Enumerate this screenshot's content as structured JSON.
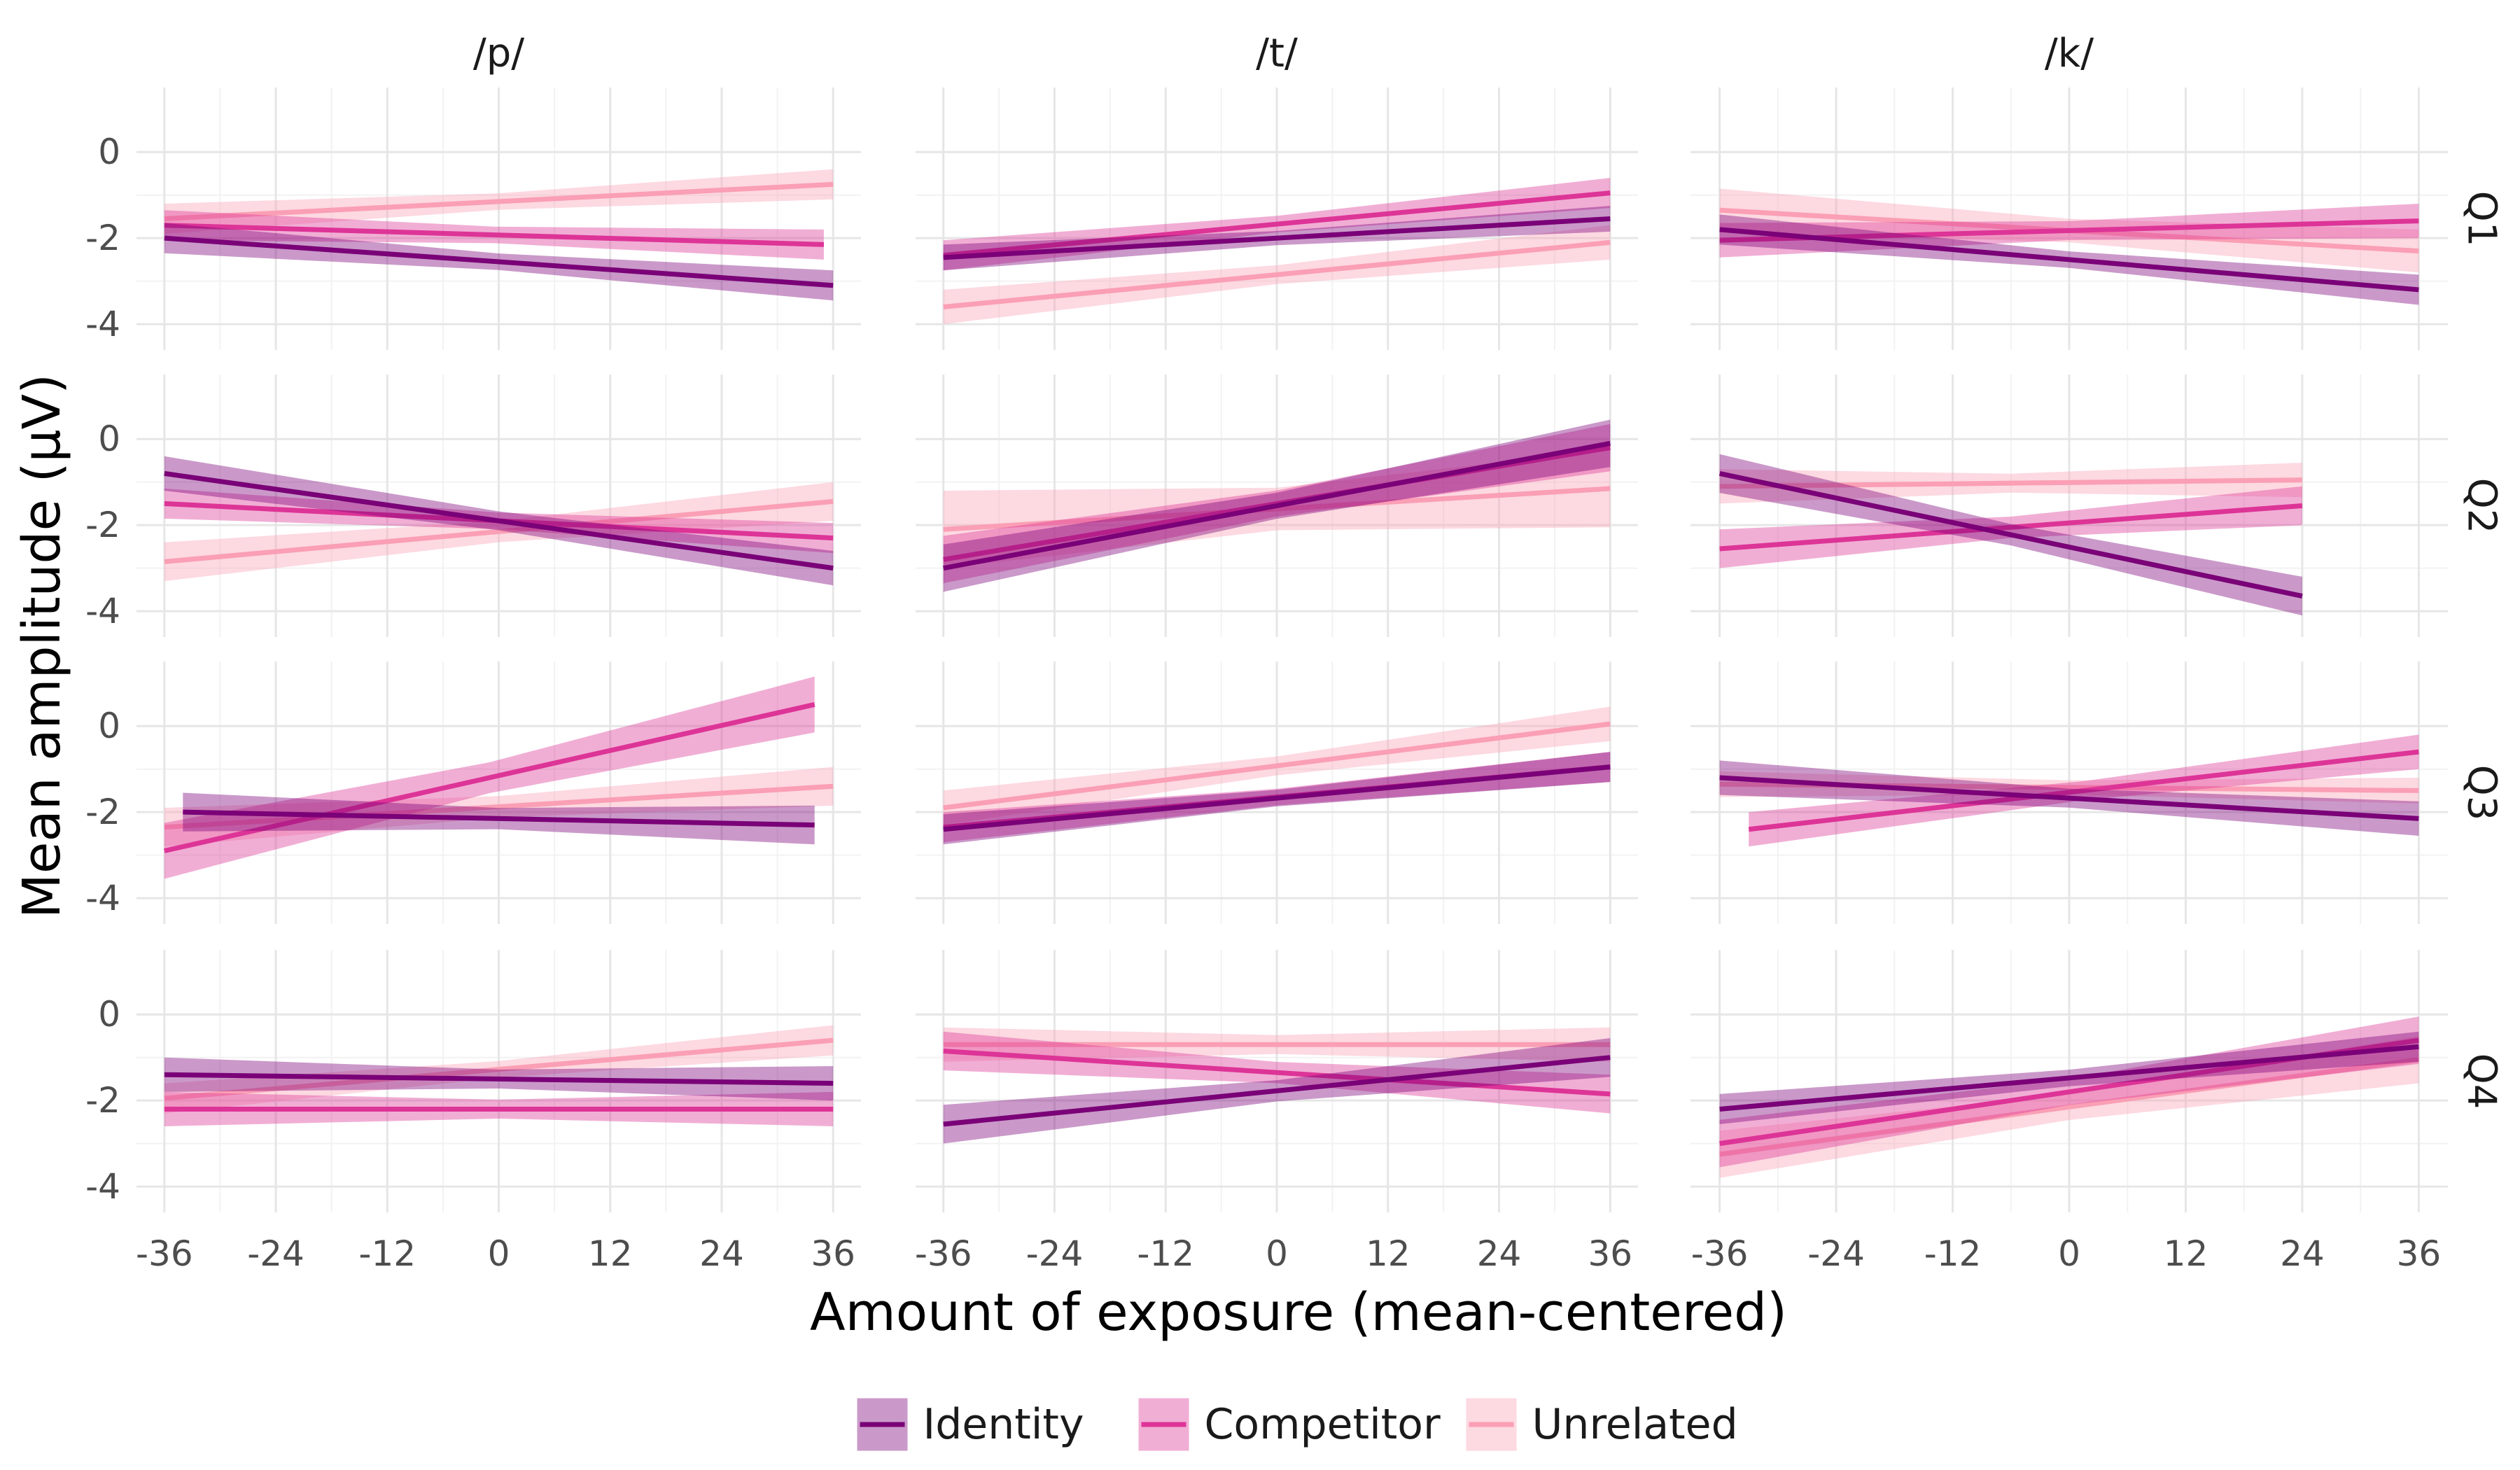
{
  "chart_data": {
    "type": "line",
    "facet_columns": [
      "/p/",
      "/t/",
      "/k/"
    ],
    "facet_rows": [
      "Q1",
      "Q2",
      "Q3",
      "Q4"
    ],
    "xlabel": "Amount of exposure (mean-centered)",
    "ylabel": "Mean amplitude (µV)",
    "xlim": [
      -39,
      39
    ],
    "ylim": [
      -4.6,
      1.5
    ],
    "x_ticks": [
      -36,
      -24,
      -12,
      0,
      12,
      24,
      36
    ],
    "y_ticks": [
      0,
      -2,
      -4
    ],
    "grid": true,
    "legend_position": "bottom",
    "legend": [
      {
        "name": "Identity",
        "color": "#7a0177"
      },
      {
        "name": "Competitor",
        "color": "#dd3497"
      },
      {
        "name": "Unrelated",
        "color": "#fa9fb5"
      }
    ],
    "panels": [
      {
        "col": "/p/",
        "row": "Q1",
        "series": [
          {
            "name": "Identity",
            "x": [
              -36,
              36
            ],
            "y": [
              -2.0,
              -3.1
            ],
            "ci": 0.35
          },
          {
            "name": "Competitor",
            "x": [
              -36,
              35
            ],
            "y": [
              -1.7,
              -2.15
            ],
            "ci": 0.35
          },
          {
            "name": "Unrelated",
            "x": [
              -36,
              36
            ],
            "y": [
              -1.55,
              -0.75
            ],
            "ci": 0.35
          }
        ]
      },
      {
        "col": "/t/",
        "row": "Q1",
        "series": [
          {
            "name": "Identity",
            "x": [
              -36,
              36
            ],
            "y": [
              -2.45,
              -1.55
            ],
            "ci": 0.3
          },
          {
            "name": "Competitor",
            "x": [
              -36,
              36
            ],
            "y": [
              -2.4,
              -0.95
            ],
            "ci": 0.35
          },
          {
            "name": "Unrelated",
            "x": [
              -36,
              36
            ],
            "y": [
              -3.6,
              -2.1
            ],
            "ci": 0.4
          }
        ]
      },
      {
        "col": "/k/",
        "row": "Q1",
        "series": [
          {
            "name": "Identity",
            "x": [
              -36,
              36
            ],
            "y": [
              -1.8,
              -3.2
            ],
            "ci": 0.35
          },
          {
            "name": "Competitor",
            "x": [
              -36,
              36
            ],
            "y": [
              -2.05,
              -1.6
            ],
            "ci": 0.4
          },
          {
            "name": "Unrelated",
            "x": [
              -36,
              36
            ],
            "y": [
              -1.35,
              -2.3
            ],
            "ci": 0.5
          }
        ]
      },
      {
        "col": "/p/",
        "row": "Q2",
        "series": [
          {
            "name": "Identity",
            "x": [
              -36,
              36
            ],
            "y": [
              -0.8,
              -3.0
            ],
            "ci": 0.4
          },
          {
            "name": "Competitor",
            "x": [
              -36,
              36
            ],
            "y": [
              -1.5,
              -2.3
            ],
            "ci": 0.35
          },
          {
            "name": "Unrelated",
            "x": [
              -36,
              36
            ],
            "y": [
              -2.85,
              -1.45
            ],
            "ci": 0.45
          }
        ]
      },
      {
        "col": "/t/",
        "row": "Q2",
        "series": [
          {
            "name": "Identity",
            "x": [
              -36,
              36
            ],
            "y": [
              -3.0,
              -0.1
            ],
            "ci": 0.55
          },
          {
            "name": "Competitor",
            "x": [
              -36,
              36
            ],
            "y": [
              -2.8,
              -0.2
            ],
            "ci": 0.55
          },
          {
            "name": "Unrelated",
            "x": [
              -36,
              36
            ],
            "y": [
              -2.1,
              -1.15
            ],
            "ci": 0.9
          }
        ]
      },
      {
        "col": "/k/",
        "row": "Q2",
        "series": [
          {
            "name": "Identity",
            "x": [
              -36,
              24
            ],
            "y": [
              -0.8,
              -3.65
            ],
            "ci": 0.45
          },
          {
            "name": "Competitor",
            "x": [
              -36,
              24
            ],
            "y": [
              -2.55,
              -1.55
            ],
            "ci": 0.45
          },
          {
            "name": "Unrelated",
            "x": [
              -36,
              24
            ],
            "y": [
              -1.1,
              -0.95
            ],
            "ci": 0.4
          }
        ]
      },
      {
        "col": "/p/",
        "row": "Q3",
        "series": [
          {
            "name": "Identity",
            "x": [
              -34,
              34
            ],
            "y": [
              -2.0,
              -2.3
            ],
            "ci": 0.45
          },
          {
            "name": "Competitor",
            "x": [
              -36,
              34
            ],
            "y": [
              -2.9,
              0.5
            ],
            "ci": 0.65
          },
          {
            "name": "Unrelated",
            "x": [
              -36,
              36
            ],
            "y": [
              -2.35,
              -1.4
            ],
            "ci": 0.45
          }
        ]
      },
      {
        "col": "/t/",
        "row": "Q3",
        "series": [
          {
            "name": "Identity",
            "x": [
              -36,
              36
            ],
            "y": [
              -2.4,
              -0.95
            ],
            "ci": 0.35
          },
          {
            "name": "Competitor",
            "x": [
              -36,
              36
            ],
            "y": [
              -2.35,
              -0.95
            ],
            "ci": 0.35
          },
          {
            "name": "Unrelated",
            "x": [
              -36,
              36
            ],
            "y": [
              -1.9,
              0.05
            ],
            "ci": 0.4
          }
        ]
      },
      {
        "col": "/k/",
        "row": "Q3",
        "series": [
          {
            "name": "Identity",
            "x": [
              -36,
              36
            ],
            "y": [
              -1.2,
              -2.15
            ],
            "ci": 0.4
          },
          {
            "name": "Competitor",
            "x": [
              -33,
              36
            ],
            "y": [
              -2.4,
              -0.6
            ],
            "ci": 0.4
          },
          {
            "name": "Unrelated",
            "x": [
              -36,
              36
            ],
            "y": [
              -1.35,
              -1.5
            ],
            "ci": 0.3
          }
        ]
      },
      {
        "col": "/p/",
        "row": "Q4",
        "series": [
          {
            "name": "Identity",
            "x": [
              -36,
              36
            ],
            "y": [
              -1.4,
              -1.6
            ],
            "ci": 0.4
          },
          {
            "name": "Competitor",
            "x": [
              -36,
              36
            ],
            "y": [
              -2.2,
              -2.2
            ],
            "ci": 0.4
          },
          {
            "name": "Unrelated",
            "x": [
              -36,
              36
            ],
            "y": [
              -1.95,
              -0.6
            ],
            "ci": 0.35
          }
        ]
      },
      {
        "col": "/t/",
        "row": "Q4",
        "series": [
          {
            "name": "Identity",
            "x": [
              -36,
              36
            ],
            "y": [
              -2.55,
              -1.0
            ],
            "ci": 0.45
          },
          {
            "name": "Competitor",
            "x": [
              -36,
              36
            ],
            "y": [
              -0.85,
              -1.85
            ],
            "ci": 0.45
          },
          {
            "name": "Unrelated",
            "x": [
              -36,
              36
            ],
            "y": [
              -0.7,
              -0.7
            ],
            "ci": 0.4
          }
        ]
      },
      {
        "col": "/k/",
        "row": "Q4",
        "series": [
          {
            "name": "Identity",
            "x": [
              -36,
              36
            ],
            "y": [
              -2.2,
              -0.75
            ],
            "ci": 0.35
          },
          {
            "name": "Competitor",
            "x": [
              -36,
              36
            ],
            "y": [
              -3.0,
              -0.6
            ],
            "ci": 0.55
          },
          {
            "name": "Unrelated",
            "x": [
              -36,
              36
            ],
            "y": [
              -3.25,
              -1.05
            ],
            "ci": 0.55
          }
        ]
      }
    ]
  }
}
